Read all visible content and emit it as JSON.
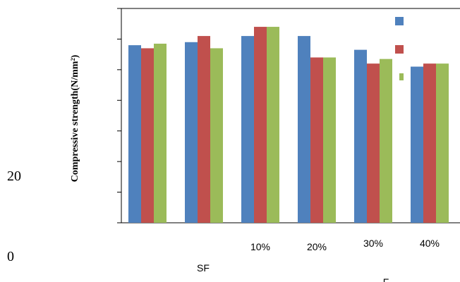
{
  "chart_data": {
    "type": "bar",
    "ylabel": "Compressive strength(N/mm²)",
    "categories": [
      "",
      "",
      "10%",
      "20%",
      "30%",
      "40%"
    ],
    "extra_x_labels": [
      "SF",
      "F"
    ],
    "stray_tick_labels": [
      "20",
      "0"
    ],
    "series": [
      {
        "color": "#4F81BD",
        "values": [
          58,
          59,
          61,
          61,
          56.5,
          51
        ]
      },
      {
        "color": "#C0504D",
        "values": [
          57,
          61,
          64,
          54,
          52,
          52
        ]
      },
      {
        "color": "#9BBB59",
        "values": [
          58.5,
          57,
          64,
          54,
          53.5,
          52
        ]
      }
    ],
    "ylim": [
      0,
      70
    ],
    "grid": false,
    "legend": "top-right"
  }
}
